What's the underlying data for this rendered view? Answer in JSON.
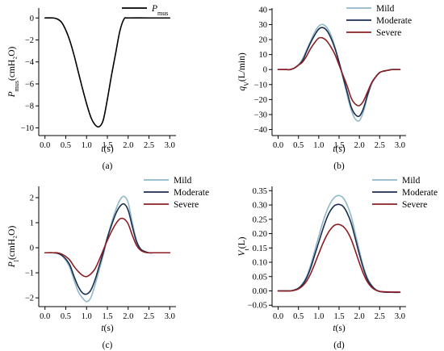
{
  "figure": {
    "xlabel_var": "t",
    "xlabel_unit": "(s)"
  },
  "chart_data": [
    {
      "type": "line",
      "panel_label": "(a)",
      "ylabel_var": "P",
      "ylabel_sub": "mus",
      "ylabel_unit": "(cmH₂O)",
      "xlim": [
        -0.15,
        3.15
      ],
      "ylim": [
        -10.7,
        0.9
      ],
      "xticks": [
        0.0,
        0.5,
        1.0,
        1.5,
        2.0,
        2.5,
        3.0
      ],
      "xtick_labels": [
        "0.0",
        "0.5",
        "1.0",
        "1.5",
        "2.0",
        "2.5",
        "3.0"
      ],
      "yticks": [
        0,
        -2,
        -4,
        -6,
        -8,
        -10
      ],
      "ytick_labels": [
        "0",
        "−2",
        "−4",
        "−6",
        "−8",
        "−10"
      ],
      "legend": "top-right",
      "series": [
        {
          "name": "Pmus",
          "label_var": "P",
          "label_sub": "mus",
          "color": "#000000",
          "x": [
            0.0,
            0.2,
            0.3,
            0.4,
            0.5,
            0.6,
            0.7,
            0.8,
            0.9,
            1.0,
            1.1,
            1.2,
            1.3,
            1.4,
            1.5,
            1.6,
            1.7,
            1.8,
            1.9,
            2.0,
            2.5,
            3.0
          ],
          "y": [
            0,
            0,
            -0.1,
            -0.4,
            -1.1,
            -2.1,
            -3.4,
            -4.9,
            -6.4,
            -7.8,
            -9.0,
            -9.7,
            -9.9,
            -9.3,
            -7.4,
            -5.2,
            -3.2,
            -1.2,
            -0.1,
            0,
            0,
            0
          ]
        }
      ]
    },
    {
      "type": "line",
      "panel_label": "(b)",
      "ylabel_var": "q",
      "ylabel_sub": "V",
      "ylabel_unit": "(L/min)",
      "xlim": [
        -0.15,
        3.15
      ],
      "ylim": [
        -44,
        41
      ],
      "xticks": [
        0.0,
        0.5,
        1.0,
        1.5,
        2.0,
        2.5,
        3.0
      ],
      "xtick_labels": [
        "0.0",
        "0.5",
        "1.0",
        "1.5",
        "2.0",
        "2.5",
        "3.0"
      ],
      "yticks": [
        40,
        30,
        20,
        10,
        0,
        -10,
        -20,
        -30,
        -40
      ],
      "ytick_labels": [
        "40",
        "30",
        "20",
        "10",
        "0",
        "−10",
        "−20",
        "−30",
        "−40"
      ],
      "legend": "top-right",
      "series": [
        {
          "name": "Mild",
          "color": "#8fb8c9",
          "x": [
            0.0,
            0.2,
            0.3,
            0.4,
            0.5,
            0.6,
            0.7,
            0.8,
            0.9,
            1.0,
            1.1,
            1.2,
            1.3,
            1.4,
            1.5,
            1.6,
            1.7,
            1.8,
            1.9,
            2.0,
            2.1,
            2.2,
            2.3,
            2.4,
            2.5,
            2.6,
            2.7,
            2.8,
            3.0
          ],
          "y": [
            0,
            0,
            0,
            1,
            3,
            7,
            13,
            19,
            25,
            29,
            30,
            28,
            23,
            15,
            5,
            -6,
            -17,
            -27,
            -33,
            -34,
            -28,
            -18,
            -10,
            -5,
            -2,
            -1,
            -0.5,
            0,
            0
          ]
        },
        {
          "name": "Moderate",
          "color": "#1a2e4f",
          "x": [
            0.0,
            0.2,
            0.3,
            0.4,
            0.5,
            0.6,
            0.7,
            0.8,
            0.9,
            1.0,
            1.1,
            1.2,
            1.3,
            1.4,
            1.5,
            1.6,
            1.7,
            1.8,
            1.9,
            2.0,
            2.1,
            2.2,
            2.3,
            2.4,
            2.5,
            2.6,
            2.7,
            2.8,
            3.0
          ],
          "y": [
            0,
            0,
            0,
            1,
            3,
            6,
            12,
            18,
            23,
            27,
            28,
            26,
            21,
            14,
            5,
            -5,
            -15,
            -25,
            -30,
            -31,
            -26,
            -17,
            -9,
            -5,
            -2,
            -1,
            -0.5,
            0,
            0
          ]
        },
        {
          "name": "Severe",
          "color": "#8b1f24",
          "x": [
            0.0,
            0.2,
            0.3,
            0.4,
            0.5,
            0.6,
            0.7,
            0.8,
            0.9,
            1.0,
            1.1,
            1.2,
            1.3,
            1.4,
            1.5,
            1.6,
            1.7,
            1.8,
            1.9,
            2.0,
            2.1,
            2.2,
            2.3,
            2.4,
            2.5,
            2.6,
            2.7,
            2.8,
            3.0
          ],
          "y": [
            0,
            0,
            0,
            1,
            3,
            5,
            9,
            14,
            18,
            21,
            21,
            19,
            15,
            10,
            3,
            -4,
            -11,
            -19,
            -23,
            -24,
            -21,
            -15,
            -9,
            -5,
            -2,
            -1,
            -0.5,
            0,
            0
          ]
        }
      ]
    },
    {
      "type": "line",
      "panel_label": "(c)",
      "ylabel_var": "P",
      "ylabel_sub": "l",
      "ylabel_unit": "(cmH₂O)",
      "xlim": [
        -0.15,
        3.15
      ],
      "ylim": [
        -2.35,
        2.45
      ],
      "xticks": [
        0.0,
        0.5,
        1.0,
        1.5,
        2.0,
        2.5,
        3.0
      ],
      "xtick_labels": [
        "0.0",
        "0.5",
        "1.0",
        "1.5",
        "2.0",
        "2.5",
        "3.0"
      ],
      "yticks": [
        2,
        1,
        0,
        -1,
        -2
      ],
      "ytick_labels": [
        "2",
        "1",
        "0",
        "−1",
        "−2"
      ],
      "legend": "top-right",
      "series": [
        {
          "name": "Mild",
          "color": "#8fb8c9",
          "x": [
            0.0,
            0.2,
            0.3,
            0.4,
            0.5,
            0.6,
            0.7,
            0.8,
            0.9,
            1.0,
            1.1,
            1.2,
            1.3,
            1.4,
            1.5,
            1.6,
            1.7,
            1.8,
            1.9,
            2.0,
            2.1,
            2.2,
            2.3,
            2.4,
            2.5,
            2.6,
            2.8,
            3.0
          ],
          "y": [
            -0.2,
            -0.2,
            -0.22,
            -0.3,
            -0.5,
            -0.8,
            -1.3,
            -1.75,
            -2.0,
            -2.15,
            -2.0,
            -1.5,
            -0.9,
            -0.3,
            0.4,
            1.0,
            1.5,
            1.9,
            2.05,
            1.8,
            1.0,
            0.3,
            -0.05,
            -0.15,
            -0.2,
            -0.2,
            -0.2,
            -0.2
          ]
        },
        {
          "name": "Moderate",
          "color": "#1a2e4f",
          "x": [
            0.0,
            0.2,
            0.3,
            0.4,
            0.5,
            0.6,
            0.7,
            0.8,
            0.9,
            1.0,
            1.1,
            1.2,
            1.3,
            1.4,
            1.5,
            1.6,
            1.7,
            1.8,
            1.9,
            2.0,
            2.1,
            2.2,
            2.3,
            2.4,
            2.5,
            2.6,
            2.8,
            3.0
          ],
          "y": [
            -0.2,
            -0.2,
            -0.22,
            -0.3,
            -0.45,
            -0.7,
            -1.15,
            -1.55,
            -1.8,
            -1.85,
            -1.7,
            -1.3,
            -0.75,
            -0.2,
            0.4,
            0.9,
            1.35,
            1.65,
            1.75,
            1.5,
            0.85,
            0.25,
            -0.05,
            -0.15,
            -0.2,
            -0.2,
            -0.2,
            -0.2
          ]
        },
        {
          "name": "Severe",
          "color": "#8b1f24",
          "x": [
            0.0,
            0.2,
            0.3,
            0.4,
            0.5,
            0.6,
            0.7,
            0.8,
            0.9,
            1.0,
            1.1,
            1.2,
            1.3,
            1.4,
            1.5,
            1.6,
            1.7,
            1.8,
            1.9,
            2.0,
            2.1,
            2.2,
            2.3,
            2.4,
            2.5,
            2.6,
            2.8,
            3.0
          ],
          "y": [
            -0.2,
            -0.2,
            -0.2,
            -0.25,
            -0.35,
            -0.5,
            -0.75,
            -0.95,
            -1.1,
            -1.15,
            -1.05,
            -0.85,
            -0.5,
            -0.1,
            0.3,
            0.65,
            0.95,
            1.15,
            1.15,
            0.95,
            0.5,
            0.1,
            -0.1,
            -0.18,
            -0.2,
            -0.2,
            -0.2,
            -0.2
          ]
        }
      ]
    },
    {
      "type": "line",
      "panel_label": "(d)",
      "ylabel_var": "V",
      "ylabel_sub": "t",
      "ylabel_unit": "(L)",
      "xlim": [
        -0.15,
        3.15
      ],
      "ylim": [
        -0.055,
        0.365
      ],
      "xticks": [
        0.0,
        0.5,
        1.0,
        1.5,
        2.0,
        2.5,
        3.0
      ],
      "xtick_labels": [
        "0.0",
        "0.5",
        "1.0",
        "1.5",
        "2.0",
        "2.5",
        "3.0"
      ],
      "yticks": [
        0.35,
        0.3,
        0.25,
        0.2,
        0.15,
        0.1,
        0.05,
        0.0,
        -0.05
      ],
      "ytick_labels": [
        "0.35",
        "0.30",
        "0.25",
        "0.20",
        "0.15",
        "0.10",
        "0.05",
        "0.00",
        "−0.05"
      ],
      "legend": "top-right",
      "series": [
        {
          "name": "Mild",
          "color": "#8fb8c9",
          "x": [
            0.0,
            0.3,
            0.4,
            0.5,
            0.6,
            0.7,
            0.8,
            0.9,
            1.0,
            1.1,
            1.2,
            1.3,
            1.4,
            1.5,
            1.6,
            1.7,
            1.8,
            1.9,
            2.0,
            2.1,
            2.2,
            2.3,
            2.4,
            2.5,
            2.6,
            2.8,
            3.0
          ],
          "y": [
            0,
            0,
            0.003,
            0.01,
            0.025,
            0.05,
            0.09,
            0.14,
            0.19,
            0.24,
            0.28,
            0.31,
            0.328,
            0.333,
            0.325,
            0.3,
            0.26,
            0.2,
            0.14,
            0.085,
            0.045,
            0.02,
            0.005,
            -0.002,
            -0.004,
            -0.005,
            -0.005
          ]
        },
        {
          "name": "Moderate",
          "color": "#1a2e4f",
          "x": [
            0.0,
            0.3,
            0.4,
            0.5,
            0.6,
            0.7,
            0.8,
            0.9,
            1.0,
            1.1,
            1.2,
            1.3,
            1.4,
            1.5,
            1.6,
            1.7,
            1.8,
            1.9,
            2.0,
            2.1,
            2.2,
            2.3,
            2.4,
            2.5,
            2.6,
            2.8,
            3.0
          ],
          "y": [
            0,
            0,
            0.003,
            0.009,
            0.022,
            0.045,
            0.08,
            0.125,
            0.17,
            0.215,
            0.255,
            0.283,
            0.299,
            0.302,
            0.295,
            0.272,
            0.236,
            0.183,
            0.128,
            0.078,
            0.04,
            0.018,
            0.004,
            -0.002,
            -0.004,
            -0.005,
            -0.005
          ]
        },
        {
          "name": "Severe",
          "color": "#8b1f24",
          "x": [
            0.0,
            0.3,
            0.4,
            0.5,
            0.6,
            0.7,
            0.8,
            0.9,
            1.0,
            1.1,
            1.2,
            1.3,
            1.4,
            1.5,
            1.6,
            1.7,
            1.8,
            1.9,
            2.0,
            2.1,
            2.2,
            2.3,
            2.4,
            2.5,
            2.6,
            2.8,
            3.0
          ],
          "y": [
            0,
            0,
            0.002,
            0.007,
            0.017,
            0.034,
            0.06,
            0.094,
            0.13,
            0.165,
            0.195,
            0.217,
            0.23,
            0.232,
            0.225,
            0.208,
            0.18,
            0.14,
            0.098,
            0.06,
            0.031,
            0.013,
            0.003,
            -0.002,
            -0.003,
            -0.004,
            -0.004
          ]
        }
      ]
    }
  ]
}
